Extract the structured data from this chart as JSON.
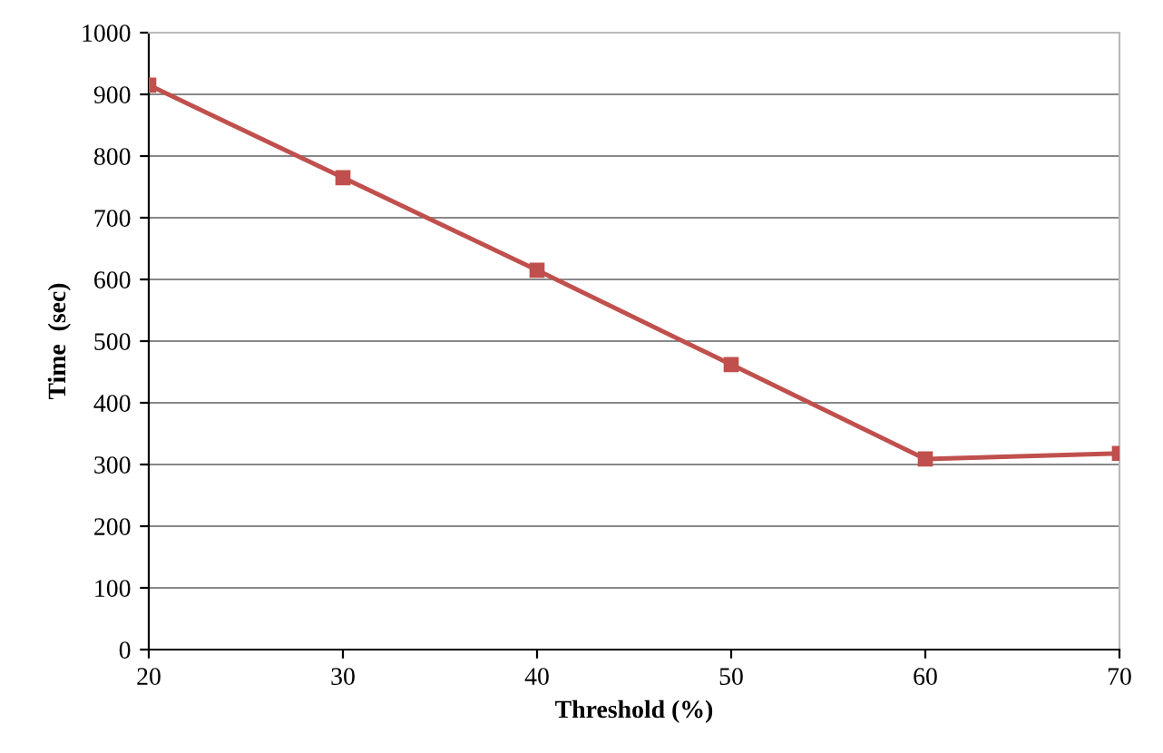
{
  "chart_data": {
    "type": "line",
    "xlabel": "Threshold (%)",
    "ylabel": "Time  (sec)",
    "x": [
      20,
      30,
      40,
      50,
      60,
      70
    ],
    "series": [
      {
        "color": "#c0504d",
        "values": [
          915,
          765,
          615,
          462,
          309,
          318
        ]
      }
    ],
    "xlim": [
      20,
      70
    ],
    "xticks": [
      20,
      30,
      40,
      50,
      60,
      70
    ],
    "ylim": [
      0,
      1000
    ],
    "yticks": [
      0,
      100,
      200,
      300,
      400,
      500,
      600,
      700,
      800,
      900,
      1000
    ],
    "grid": "y",
    "marker": "square",
    "line_style": "solid",
    "legend": false
  }
}
